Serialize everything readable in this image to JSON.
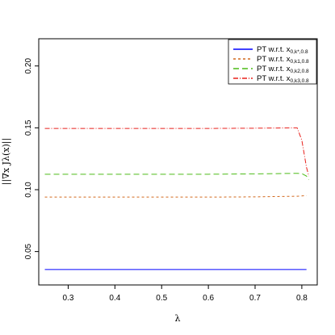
{
  "chart_data": {
    "type": "line",
    "title": "",
    "xlabel": "λ",
    "ylabel": "||∇x Jλ(x)||",
    "xlim": [
      0.237,
      0.833
    ],
    "ylim": [
      0.023,
      0.222
    ],
    "xticks": [
      0.3,
      0.4,
      0.5,
      0.6,
      0.7,
      0.8
    ],
    "xtick_labels": [
      "0.3",
      "0.4",
      "0.5",
      "0.6",
      "0.7",
      "0.8"
    ],
    "yticks": [
      0.05,
      0.1,
      0.15,
      0.2
    ],
    "ytick_labels": [
      "0.05",
      "0.10",
      "0.15",
      "0.20"
    ],
    "grid": false,
    "legend_position": "top-right",
    "series": [
      {
        "name_main": "PT w.r.t. x",
        "name_sub": "0,k*,0.8",
        "color": "#0000ff",
        "dash": "",
        "x": [
          0.25,
          0.3,
          0.4,
          0.5,
          0.6,
          0.7,
          0.78,
          0.81
        ],
        "y": [
          0.0355,
          0.0355,
          0.0355,
          0.0355,
          0.0355,
          0.0355,
          0.0355,
          0.0355
        ]
      },
      {
        "name_main": "PT w.r.t. x",
        "name_sub": "0,k1,0.8",
        "color": "#d2691e",
        "dash": "3,3",
        "x": [
          0.25,
          0.3,
          0.4,
          0.5,
          0.6,
          0.7,
          0.79,
          0.81
        ],
        "y": [
          0.094,
          0.094,
          0.094,
          0.094,
          0.094,
          0.0942,
          0.0947,
          0.0952
        ]
      },
      {
        "name_main": "PT w.r.t. x",
        "name_sub": "0,k2,0.8",
        "color": "#4cbb17",
        "dash": "7,4",
        "x": [
          0.25,
          0.3,
          0.4,
          0.5,
          0.6,
          0.7,
          0.79,
          0.8,
          0.81,
          0.815
        ],
        "y": [
          0.1125,
          0.1125,
          0.1125,
          0.1125,
          0.1125,
          0.1128,
          0.1132,
          0.113,
          0.111,
          0.108
        ]
      },
      {
        "name_main": "PT w.r.t. x",
        "name_sub": "0,k3,0.8",
        "color": "#e8201c",
        "dash": "6,2,1,2",
        "x": [
          0.25,
          0.3,
          0.4,
          0.5,
          0.6,
          0.7,
          0.79,
          0.8,
          0.81,
          0.815
        ],
        "y": [
          0.1495,
          0.1495,
          0.1495,
          0.1495,
          0.1495,
          0.1497,
          0.15,
          0.14,
          0.118,
          0.111
        ]
      }
    ]
  }
}
